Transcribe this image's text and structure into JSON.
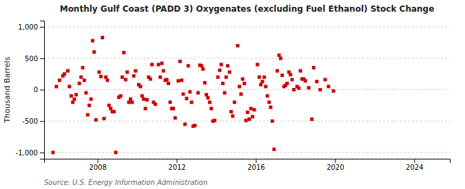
{
  "chart_data": {
    "type": "scatter",
    "title": "Monthly Gulf Coast (PADD 3) Oxygenates (excluding Fuel Ethanol) Stock Change",
    "y_label": "Thousand Barrels",
    "source": "Source: U.S. Energy Information Administration",
    "color": "#cc0000",
    "marker": "square",
    "grid": true,
    "xlim": [
      2005.3,
      2025.8
    ],
    "xticks": [
      2008,
      2012,
      2016,
      2020,
      2024
    ],
    "ylim": [
      -1100,
      1100
    ],
    "yticks": [
      {
        "value": -1000,
        "label": "-1,000"
      },
      -500,
      0,
      500,
      {
        "value": 1000,
        "label": "1,000"
      }
    ],
    "x": [
      2005.75,
      2005.92,
      2006.08,
      2006.25,
      2006.33,
      2006.5,
      2006.58,
      2006.67,
      2006.75,
      2006.83,
      2006.92,
      2007.08,
      2007.17,
      2007.25,
      2007.33,
      2007.42,
      2007.5,
      2007.58,
      2007.67,
      2007.75,
      2007.83,
      2007.92,
      2008.08,
      2008.17,
      2008.25,
      2008.33,
      2008.42,
      2008.5,
      2008.58,
      2008.67,
      2008.75,
      2008.83,
      2008.92,
      2009.08,
      2009.17,
      2009.25,
      2009.33,
      2009.42,
      2009.5,
      2009.58,
      2009.67,
      2009.75,
      2009.83,
      2009.92,
      2010.08,
      2010.17,
      2010.25,
      2010.33,
      2010.42,
      2010.5,
      2010.58,
      2010.67,
      2010.75,
      2010.83,
      2010.92,
      2011.08,
      2011.17,
      2011.25,
      2011.33,
      2011.42,
      2011.5,
      2011.58,
      2011.67,
      2011.75,
      2011.83,
      2011.92,
      2012.08,
      2012.17,
      2012.25,
      2012.33,
      2012.42,
      2012.5,
      2012.58,
      2012.67,
      2012.75,
      2012.83,
      2012.92,
      2013.08,
      2013.17,
      2013.25,
      2013.33,
      2013.42,
      2013.5,
      2013.58,
      2013.67,
      2013.75,
      2013.83,
      2013.92,
      2014.08,
      2014.17,
      2014.25,
      2014.33,
      2014.42,
      2014.5,
      2014.58,
      2014.67,
      2014.75,
      2014.83,
      2014.92,
      2015.08,
      2015.17,
      2015.25,
      2015.33,
      2015.42,
      2015.5,
      2015.58,
      2015.67,
      2015.75,
      2015.83,
      2015.92,
      2016.08,
      2016.17,
      2016.25,
      2016.33,
      2016.42,
      2016.5,
      2016.58,
      2016.67,
      2016.75,
      2016.83,
      2016.92,
      2017.08,
      2017.17,
      2017.25,
      2017.33,
      2017.42,
      2017.5,
      2017.58,
      2017.67,
      2017.75,
      2017.83,
      2017.92,
      2018.08,
      2018.17,
      2018.25,
      2018.33,
      2018.42,
      2018.5,
      2018.67,
      2018.83,
      2018.92,
      2019.08,
      2019.25,
      2019.5,
      2019.67,
      2019.92
    ],
    "values": [
      -1000,
      50,
      150,
      220,
      250,
      300,
      50,
      -100,
      -200,
      -150,
      -80,
      100,
      200,
      350,
      150,
      -50,
      -400,
      -250,
      -150,
      780,
      600,
      -480,
      280,
      210,
      830,
      -460,
      200,
      150,
      -250,
      -300,
      -350,
      -350,
      -1000,
      -120,
      -100,
      200,
      590,
      160,
      280,
      -200,
      -150,
      -200,
      220,
      300,
      80,
      50,
      -100,
      -150,
      -300,
      -160,
      200,
      170,
      400,
      -200,
      -230,
      400,
      200,
      420,
      300,
      150,
      160,
      100,
      -200,
      -300,
      -300,
      -450,
      140,
      450,
      150,
      -70,
      -550,
      -140,
      380,
      -35,
      -200,
      -580,
      -570,
      -50,
      390,
      380,
      330,
      110,
      -80,
      -130,
      -200,
      -300,
      -500,
      -490,
      200,
      310,
      400,
      100,
      -50,
      200,
      380,
      280,
      -350,
      -420,
      -200,
      700,
      50,
      -70,
      170,
      100,
      -490,
      -360,
      -470,
      -300,
      -430,
      -320,
      400,
      200,
      80,
      130,
      200,
      50,
      -100,
      -200,
      -280,
      -500,
      -950,
      300,
      550,
      500,
      230,
      50,
      70,
      100,
      280,
      240,
      160,
      0,
      50,
      25,
      300,
      170,
      170,
      140,
      30,
      -470,
      350,
      130,
      0,
      160,
      50,
      -20
    ]
  }
}
